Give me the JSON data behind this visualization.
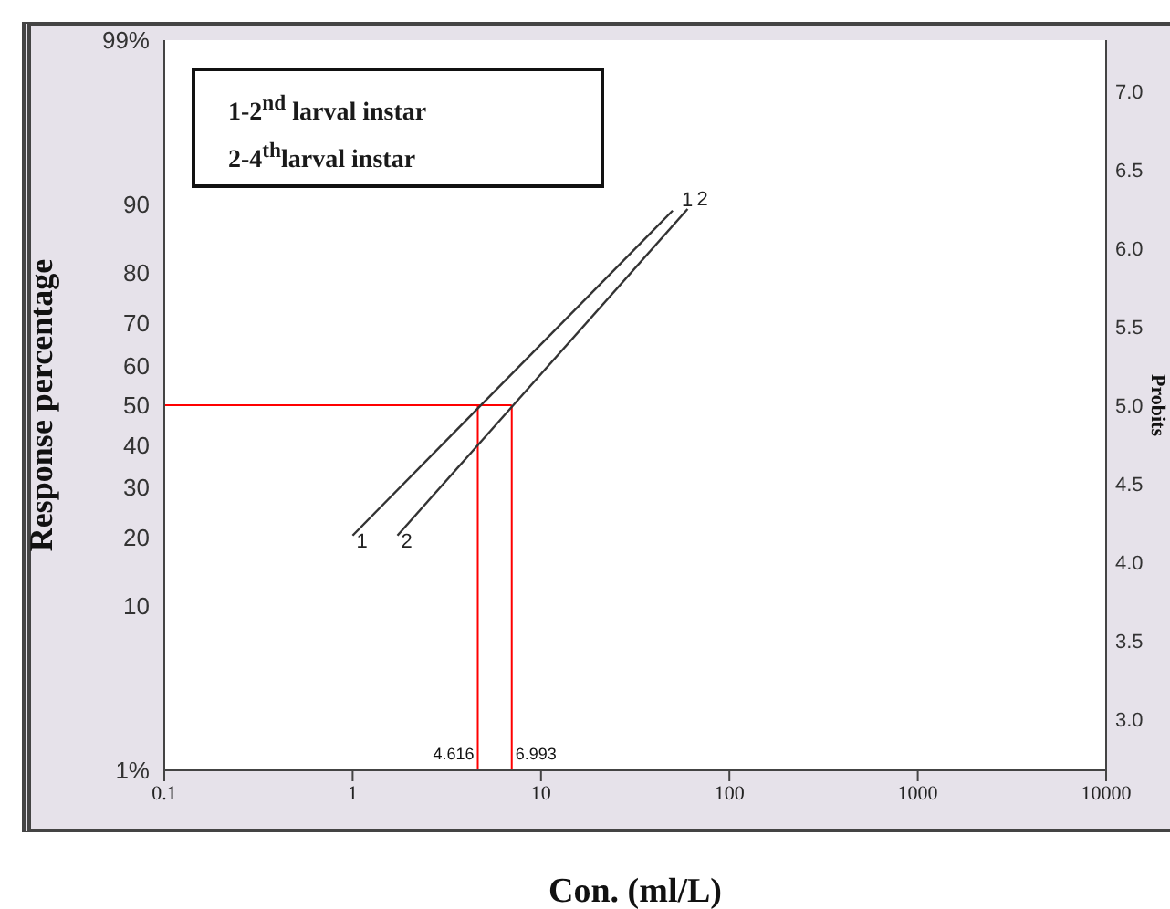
{
  "chart_data": {
    "type": "line",
    "xlabel": "Con. (ml/L)",
    "ylabel": "Probits",
    "log": "x",
    "marker": "none",
    "line_style": "solid",
    "legend": false,
    "xlim": [
      0.1,
      10000
    ],
    "xticks": [
      0.1,
      1,
      10,
      100,
      1000,
      10000
    ],
    "ylim": [
      2.674,
      7.326
    ],
    "yticks": [
      {
        "value": 3,
        "label": "3.0"
      },
      3.5,
      {
        "value": 4,
        "label": "4.0"
      },
      4.5,
      {
        "value": 5,
        "label": "5.0"
      },
      5.5,
      {
        "value": 6,
        "label": "6.0"
      },
      6.5,
      {
        "value": 7,
        "label": "7.0"
      }
    ],
    "series": [
      {
        "color": "#333333",
        "x": [
          1,
          50
        ],
        "values": [
          4.17,
          6.24
        ]
      },
      {
        "color": "#333333",
        "x": [
          1.73,
          60
        ],
        "values": [
          4.17,
          6.25
        ]
      }
    ],
    "ref_lines": [
      {
        "axis": "y",
        "value": 5,
        "color": "#ff0000"
      },
      {
        "axis": "x",
        "value": 4.616,
        "label": "4.616",
        "color": "#ff0000"
      },
      {
        "axis": "x",
        "value": 6.993,
        "label": "6.993",
        "color": "#ff0000"
      }
    ],
    "annotations": [
      "Response percentage",
      "1-2$^{nd}$ larval instar",
      "2-4$^{th}$larval instar",
      {
        "text": "1",
        "x": 1,
        "y": 4.17
      },
      {
        "text": "2",
        "x": 1.73,
        "y": 4.17
      },
      {
        "text": "1",
        "x": 50,
        "y": 6.24
      },
      {
        "text": "2",
        "x": 60,
        "y": 6.25
      },
      "1%",
      "10",
      "20",
      "30",
      "40",
      "50",
      "60",
      "70",
      "80",
      "90",
      "99%"
    ]
  }
}
